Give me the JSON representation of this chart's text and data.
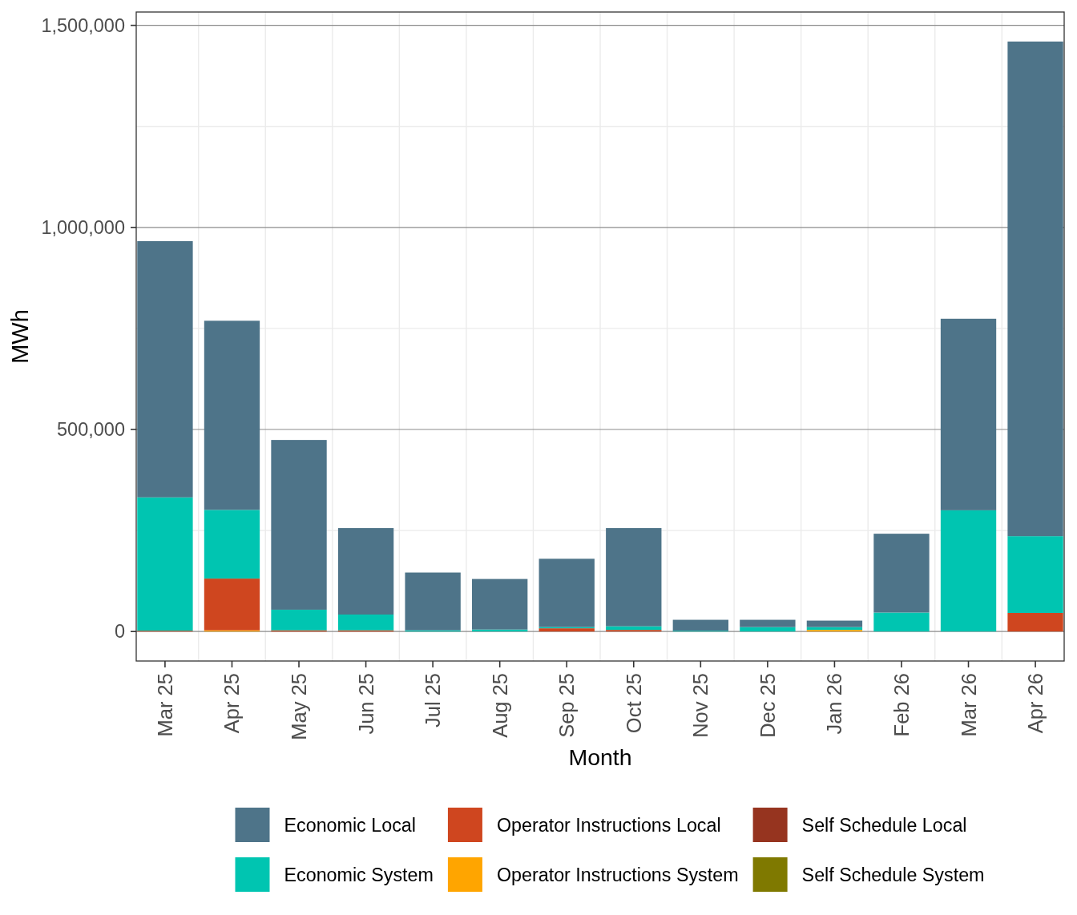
{
  "chart_data": {
    "type": "bar",
    "stacked": true,
    "xlabel": "Month",
    "ylabel": "MWh",
    "categories": [
      "Mar 25",
      "Apr 25",
      "May 25",
      "Jun 25",
      "Jul 25",
      "Aug 25",
      "Sep 25",
      "Oct 25",
      "Nov 25",
      "Dec 25",
      "Jan 26",
      "Feb 26",
      "Mar 26",
      "Apr 26"
    ],
    "ylim": [
      -73000,
      1533000
    ],
    "yticks": [
      0,
      {
        "value": 500000,
        "label": "500,000"
      },
      {
        "value": 1000000,
        "label": "1,000,000"
      },
      {
        "value": 1500000,
        "label": "1,500,000"
      }
    ],
    "grid": true,
    "legend": "bottom",
    "series": [
      {
        "name": "Self Schedule System",
        "color": "#7f7900",
        "values": [
          null,
          null,
          null,
          null,
          null,
          null,
          null,
          null,
          null,
          null,
          null,
          null,
          null,
          null
        ]
      },
      {
        "name": "Self Schedule Local",
        "color": "#96341f",
        "values": [
          null,
          null,
          null,
          null,
          null,
          null,
          null,
          null,
          null,
          null,
          null,
          null,
          null,
          null
        ]
      },
      {
        "name": "Operator Instructions System",
        "color": "#ffa500",
        "values": [
          null,
          3000,
          null,
          null,
          null,
          null,
          null,
          null,
          null,
          null,
          4000,
          null,
          null,
          null
        ]
      },
      {
        "name": "Operator Instructions Local",
        "color": "#cf461f",
        "values": [
          2000,
          128000,
          3000,
          3000,
          null,
          null,
          8000,
          4000,
          null,
          null,
          null,
          null,
          null,
          46000
        ]
      },
      {
        "name": "Economic System",
        "color": "#00c5b1",
        "values": [
          330000,
          170000,
          51000,
          39000,
          3000,
          5000,
          3000,
          9000,
          2000,
          11000,
          7000,
          47000,
          300000,
          190000
        ]
      },
      {
        "name": "Economic Local",
        "color": "#4e7489",
        "values": [
          634000,
          468000,
          420000,
          214000,
          143000,
          125000,
          169000,
          243000,
          27000,
          18000,
          16000,
          195000,
          474000,
          1224000
        ]
      }
    ]
  }
}
